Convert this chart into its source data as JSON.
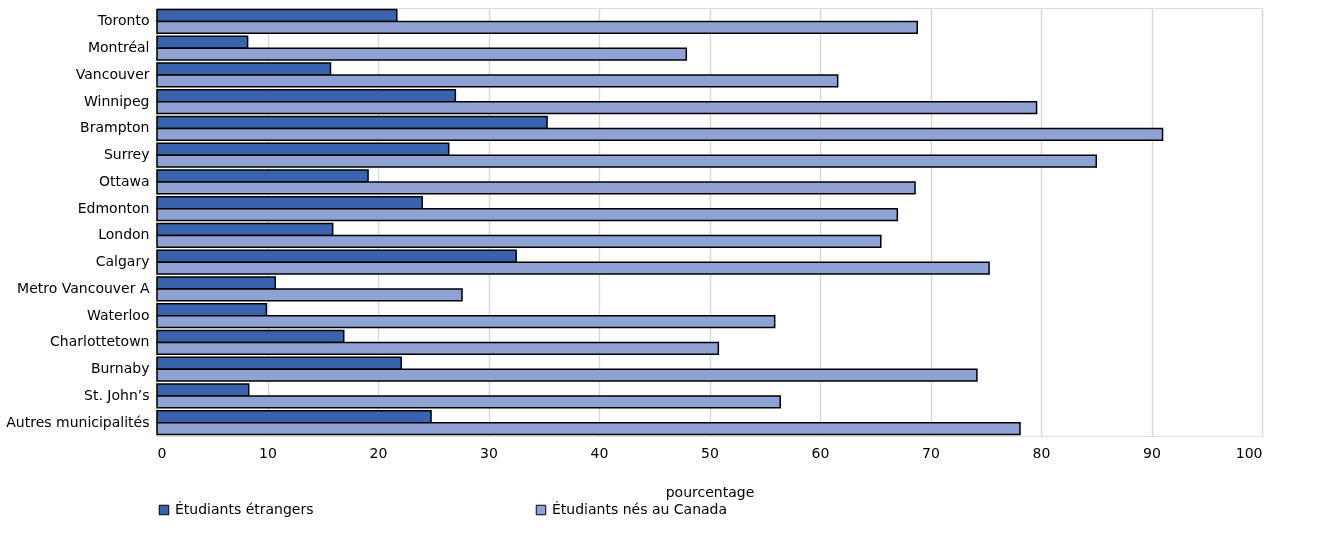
{
  "chart_data": {
    "type": "bar",
    "orientation": "horizontal",
    "xlabel": "pourcentage",
    "categories": [
      "Toronto",
      "Montréal",
      "Vancouver",
      "Winnipeg",
      "Brampton",
      "Surrey",
      "Ottawa",
      "Edmonton",
      "London",
      "Calgary",
      "Metro Vancouver A",
      "Waterloo",
      "Charlottetown",
      "Burnaby",
      "St. John’s",
      "Autres municipalités"
    ],
    "series": [
      {
        "name": "Étudiants étrangers",
        "color": "#3a63ad",
        "values": [
          21.7,
          8.2,
          15.7,
          27.0,
          35.3,
          26.4,
          19.1,
          24.0,
          15.9,
          32.5,
          10.7,
          9.9,
          16.9,
          22.1,
          8.3,
          24.8
        ]
      },
      {
        "name": "Étudiants nés au Canada",
        "color": "#8ea3d4",
        "values": [
          68.8,
          47.9,
          61.6,
          79.6,
          91.0,
          85.0,
          68.6,
          67.0,
          65.5,
          75.3,
          27.6,
          55.9,
          50.8,
          74.2,
          56.4,
          78.1
        ]
      }
    ],
    "xlim": [
      0,
      100
    ],
    "xticks": [
      0,
      10,
      20,
      30,
      40,
      50,
      60,
      70,
      80,
      90,
      100
    ],
    "grid": "x",
    "legend": "bottom"
  }
}
